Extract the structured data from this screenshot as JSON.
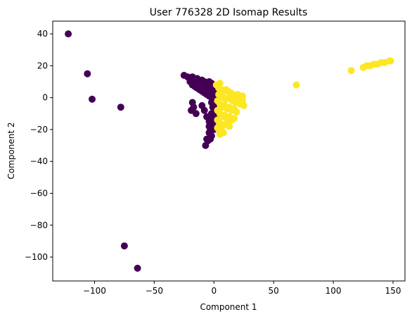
{
  "chart_data": {
    "type": "scatter",
    "title": "User 776328 2D Isomap Results",
    "xlabel": "Component 1",
    "ylabel": "Component 2",
    "xlim": [
      -135,
      160
    ],
    "ylim": [
      -115,
      48
    ],
    "xticks": [
      -100,
      -50,
      0,
      50,
      100,
      150
    ],
    "yticks": [
      40,
      20,
      0,
      -20,
      -40,
      -60,
      -80,
      -100
    ],
    "xtick_labels": [
      "−100",
      "−50",
      "0",
      "50",
      "100",
      "150"
    ],
    "ytick_labels": [
      "40",
      "20",
      "0",
      "−20",
      "−40",
      "−60",
      "−80",
      "−100"
    ],
    "grid": false,
    "series": [
      {
        "color": "#440154",
        "points": [
          [
            -122,
            40
          ],
          [
            -106,
            15
          ],
          [
            -102,
            -1
          ],
          [
            -78,
            -6
          ],
          [
            -75,
            -93
          ],
          [
            -64,
            -107
          ],
          [
            -25,
            14
          ],
          [
            -22,
            13
          ],
          [
            -20,
            12
          ],
          [
            -18,
            13
          ],
          [
            -16,
            11
          ],
          [
            -14,
            12
          ],
          [
            -12,
            10
          ],
          [
            -10,
            11
          ],
          [
            -8,
            10
          ],
          [
            -6,
            9
          ],
          [
            -4,
            10
          ],
          [
            -2,
            9
          ],
          [
            0,
            8
          ],
          [
            2,
            7
          ],
          [
            -20,
            10
          ],
          [
            -18,
            8
          ],
          [
            -16,
            7
          ],
          [
            -14,
            6
          ],
          [
            -12,
            5
          ],
          [
            -10,
            4
          ],
          [
            -8,
            3
          ],
          [
            -6,
            2
          ],
          [
            -4,
            1
          ],
          [
            -2,
            0
          ],
          [
            -14,
            9
          ],
          [
            -12,
            7
          ],
          [
            -10,
            6
          ],
          [
            -8,
            5
          ],
          [
            -6,
            4
          ],
          [
            -4,
            3
          ],
          [
            -2,
            2
          ],
          [
            0,
            1
          ],
          [
            -6,
            7
          ],
          [
            -4,
            6
          ],
          [
            -2,
            5
          ],
          [
            0,
            4
          ],
          [
            2,
            3
          ],
          [
            2,
            0
          ],
          [
            0,
            -2
          ],
          [
            -2,
            -3
          ],
          [
            -18,
            -3
          ],
          [
            -17,
            -6
          ],
          [
            -19,
            -8
          ],
          [
            -15,
            -10
          ],
          [
            -10,
            -5
          ],
          [
            -8,
            -8
          ],
          [
            -6,
            -12
          ],
          [
            -4,
            -15
          ],
          [
            -2,
            -10
          ],
          [
            -1,
            -6
          ],
          [
            0,
            -5
          ],
          [
            1,
            -9
          ],
          [
            1,
            -13
          ],
          [
            -4,
            -18
          ],
          [
            -3,
            -20
          ],
          [
            -4,
            -22
          ],
          [
            -2,
            -24
          ],
          [
            0,
            -20
          ],
          [
            -1,
            -16
          ],
          [
            -2,
            -13
          ],
          [
            -6,
            -26
          ],
          [
            -7,
            -30
          ],
          [
            -5,
            -27
          ],
          [
            -3,
            -26
          ]
        ]
      },
      {
        "color": "#fde725",
        "points": [
          [
            2,
            8
          ],
          [
            5,
            9
          ],
          [
            4,
            6
          ],
          [
            6,
            5
          ],
          [
            8,
            4
          ],
          [
            10,
            5
          ],
          [
            12,
            4
          ],
          [
            14,
            3
          ],
          [
            16,
            2
          ],
          [
            18,
            1
          ],
          [
            4,
            2
          ],
          [
            6,
            1
          ],
          [
            8,
            0
          ],
          [
            10,
            -1
          ],
          [
            12,
            0
          ],
          [
            14,
            -1
          ],
          [
            16,
            -2
          ],
          [
            18,
            -3
          ],
          [
            20,
            -2
          ],
          [
            22,
            -4
          ],
          [
            24,
            -2
          ],
          [
            24,
            1
          ],
          [
            25,
            -5
          ],
          [
            20,
            2
          ],
          [
            3,
            -2
          ],
          [
            5,
            -4
          ],
          [
            7,
            -6
          ],
          [
            9,
            -5
          ],
          [
            11,
            -7
          ],
          [
            13,
            -6
          ],
          [
            15,
            -8
          ],
          [
            17,
            -7
          ],
          [
            19,
            -9
          ],
          [
            3,
            -8
          ],
          [
            5,
            -10
          ],
          [
            7,
            -12
          ],
          [
            9,
            -11
          ],
          [
            11,
            -13
          ],
          [
            13,
            -12
          ],
          [
            15,
            -14
          ],
          [
            17,
            -13
          ],
          [
            3,
            -14
          ],
          [
            5,
            -16
          ],
          [
            7,
            -18
          ],
          [
            9,
            -17
          ],
          [
            11,
            -16
          ],
          [
            13,
            -18
          ],
          [
            4,
            -20
          ],
          [
            6,
            -21
          ],
          [
            8,
            -22
          ],
          [
            5,
            -23
          ],
          [
            3,
            -19
          ],
          [
            69,
            8
          ],
          [
            115,
            17
          ],
          [
            125,
            19
          ],
          [
            128,
            20
          ],
          [
            131,
            20
          ],
          [
            134,
            21
          ],
          [
            137,
            21
          ],
          [
            140,
            22
          ],
          [
            143,
            22
          ],
          [
            147,
            23
          ],
          [
            148,
            23
          ]
        ]
      }
    ]
  }
}
